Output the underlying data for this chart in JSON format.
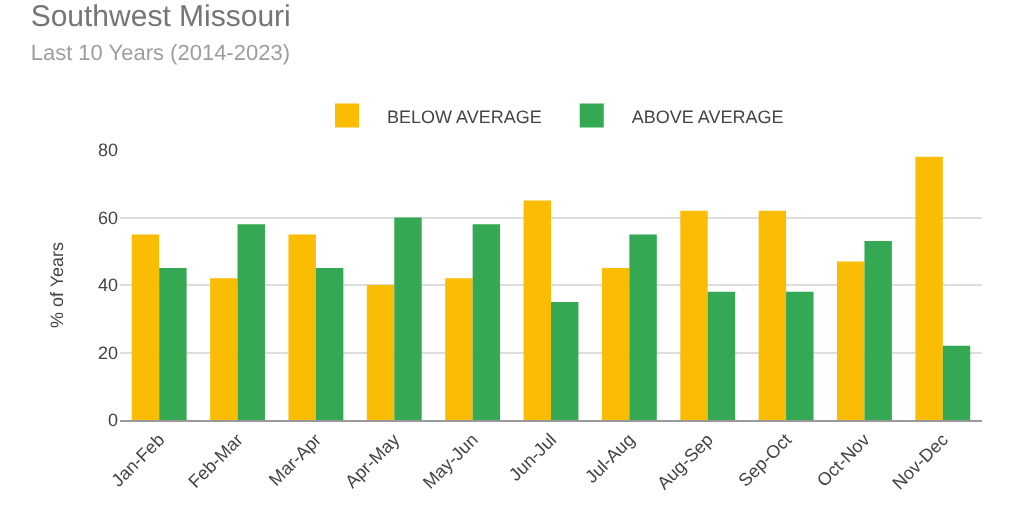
{
  "chart_data": {
    "type": "bar",
    "title": "Southwest Missouri",
    "subtitle": "Last 10 Years (2014-2023)",
    "ylabel": "% of Years",
    "categories": [
      "Jan-Feb",
      "Feb-Mar",
      "Mar-Apr",
      "Apr-May",
      "May-Jun",
      "Jun-Jul",
      "Jul-Aug",
      "Aug-Sep",
      "Sep-Oct",
      "Oct-Nov",
      "Nov-Dec"
    ],
    "series": [
      {
        "name": "BELOW AVERAGE",
        "color": "#fbbc04",
        "values": [
          55,
          42,
          55,
          40,
          42,
          65,
          45,
          62,
          62,
          47,
          78
        ]
      },
      {
        "name": "ABOVE AVERAGE",
        "color": "#34a853",
        "values": [
          45,
          58,
          45,
          60,
          58,
          35,
          55,
          38,
          38,
          53,
          22
        ]
      }
    ],
    "ylim": [
      0,
      80
    ],
    "yticks": [
      0,
      20,
      40,
      60,
      80
    ],
    "grid": "y",
    "legend": "top"
  }
}
